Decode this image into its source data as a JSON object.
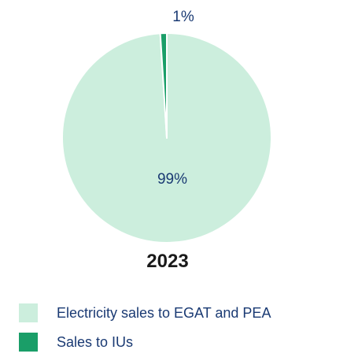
{
  "chart_data": {
    "type": "pie",
    "title": "2023",
    "slices": [
      {
        "label": "Electricity sales to EGAT and PEA",
        "value": 99,
        "display": "99%",
        "color": "#cceedd"
      },
      {
        "label": "Sales to IUs",
        "value": 1,
        "display": "1%",
        "color": "#1a9e68"
      }
    ],
    "legend_position": "bottom-left"
  },
  "colors": {
    "label_text": "#1a3a73",
    "title_text": "#1a1a1a",
    "separator": "#ffffff"
  }
}
